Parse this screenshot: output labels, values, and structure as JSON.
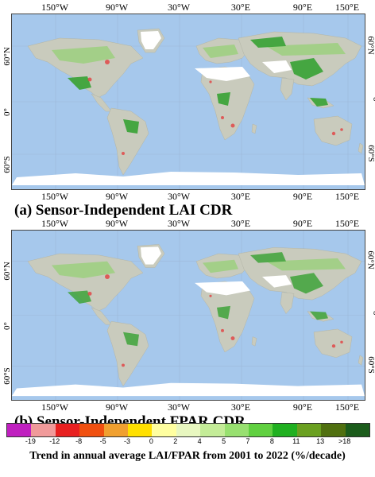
{
  "longitudes": [
    "150°W",
    "90°W",
    "30°W",
    "30°E",
    "90°E",
    "150°E"
  ],
  "latitudes": [
    "60°N",
    "0°",
    "60°S"
  ],
  "panels": [
    {
      "caption": "(a) Sensor-Independent LAI CDR"
    },
    {
      "caption": "(b) Sensor-Independent FPAR CDR"
    }
  ],
  "legend": {
    "title": "Trend in annual average LAI/FPAR from 2001 to 2022  (%/decade)",
    "ticks": [
      "-19",
      "-12",
      "-8",
      "-5",
      "-3",
      "0",
      "2",
      "4",
      "5",
      "7",
      "8",
      "11",
      "13",
      ">18"
    ],
    "colors": [
      "#c020c0",
      "#f09a9a",
      "#e82020",
      "#f05010",
      "#f0a030",
      "#ffe000",
      "#ffffa0",
      "#e8f7c0",
      "#c4ec98",
      "#98e070",
      "#60d040",
      "#20b020",
      "#6aa020",
      "#507010",
      "#1c5c1c"
    ]
  },
  "colors": {
    "ocean": "#a6c8ec",
    "land": "#c9cbbd",
    "ice": "#ffffff",
    "veg_green": "#3ea33a",
    "veg_light": "#9ad07a",
    "decline": "#e04848"
  }
}
